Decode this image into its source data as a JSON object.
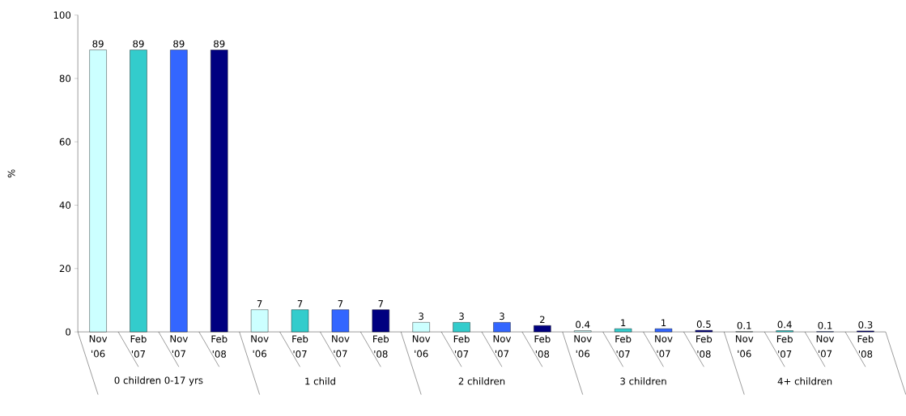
{
  "chart_data": {
    "type": "bar",
    "ylabel": "%",
    "categories": [
      "0 children 0-17 yrs",
      "1 child",
      "2 children",
      "3 children",
      "4+ children"
    ],
    "series": [
      {
        "name": "Nov '06",
        "color": "#ccffff",
        "values": [
          89,
          7,
          3,
          0.4,
          0.1
        ]
      },
      {
        "name": "Feb '07",
        "color": "#33cccc",
        "values": [
          89,
          7,
          3,
          1,
          0.4
        ]
      },
      {
        "name": "Nov '07",
        "color": "#3366ff",
        "values": [
          89,
          7,
          3,
          1,
          0.1
        ]
      },
      {
        "name": "Feb '08",
        "color": "#000080",
        "values": [
          89,
          7,
          2,
          0.5,
          0.3
        ]
      }
    ],
    "ylim": [
      0,
      100
    ],
    "yticks": [
      0,
      20,
      40,
      60,
      80,
      100
    ],
    "data_labels": true
  }
}
